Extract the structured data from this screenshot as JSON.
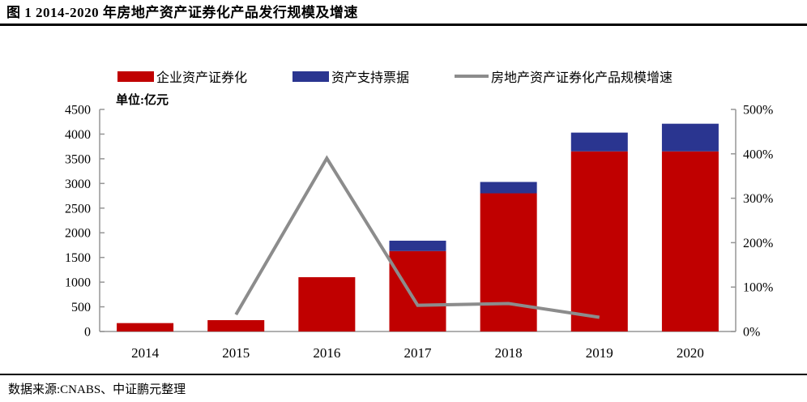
{
  "page": {
    "title": "图 1 2014-2020 年房地产资产证券化产品发行规模及增速",
    "unit_label": "单位:亿元",
    "source": "数据来源:CNABS、中证鹏元整理"
  },
  "legend": {
    "items": [
      {
        "label": "企业资产证券化",
        "swatch": "bar",
        "color": "#C00000"
      },
      {
        "label": "资产支持票据",
        "swatch": "bar",
        "color": "#2A3590"
      },
      {
        "label": "房地产资产证券化产品规模增速",
        "swatch": "line",
        "color": "#8C8C8C"
      }
    ]
  },
  "colors": {
    "bar_red": "#C00000",
    "bar_blue": "#2A3590",
    "growth_line": "#8C8C8C",
    "axis": "#969696",
    "rule": "#000000",
    "text": "#000000"
  },
  "chart_data": {
    "type": "bar",
    "subtype": "stacked-bar-with-line-combo",
    "title": "2014-2020 年房地产资产证券化产品发行规模及增速",
    "categories": [
      "2014",
      "2015",
      "2016",
      "2017",
      "2018",
      "2019",
      "2020"
    ],
    "series": [
      {
        "name": "企业资产证券化",
        "type": "bar",
        "stack": "issuance",
        "axis": "left",
        "color": "#C00000",
        "values": [
          170,
          230,
          1100,
          1630,
          2800,
          3650,
          3650
        ]
      },
      {
        "name": "资产支持票据",
        "type": "bar",
        "stack": "issuance",
        "axis": "left",
        "color": "#2A3590",
        "values": [
          0,
          0,
          0,
          210,
          230,
          380,
          560
        ]
      },
      {
        "name": "房地产资产证券化产品规模增速",
        "type": "line",
        "axis": "right",
        "color": "#8C8C8C",
        "values": [
          null,
          38,
          390,
          59,
          63,
          32,
          null
        ]
      }
    ],
    "left_axis": {
      "label": "单位:亿元",
      "min": 0,
      "max": 4500,
      "step": 500
    },
    "right_axis": {
      "unit": "%",
      "min": 0,
      "max": 500,
      "step": 100
    },
    "grid": false,
    "legend_position": "top"
  }
}
